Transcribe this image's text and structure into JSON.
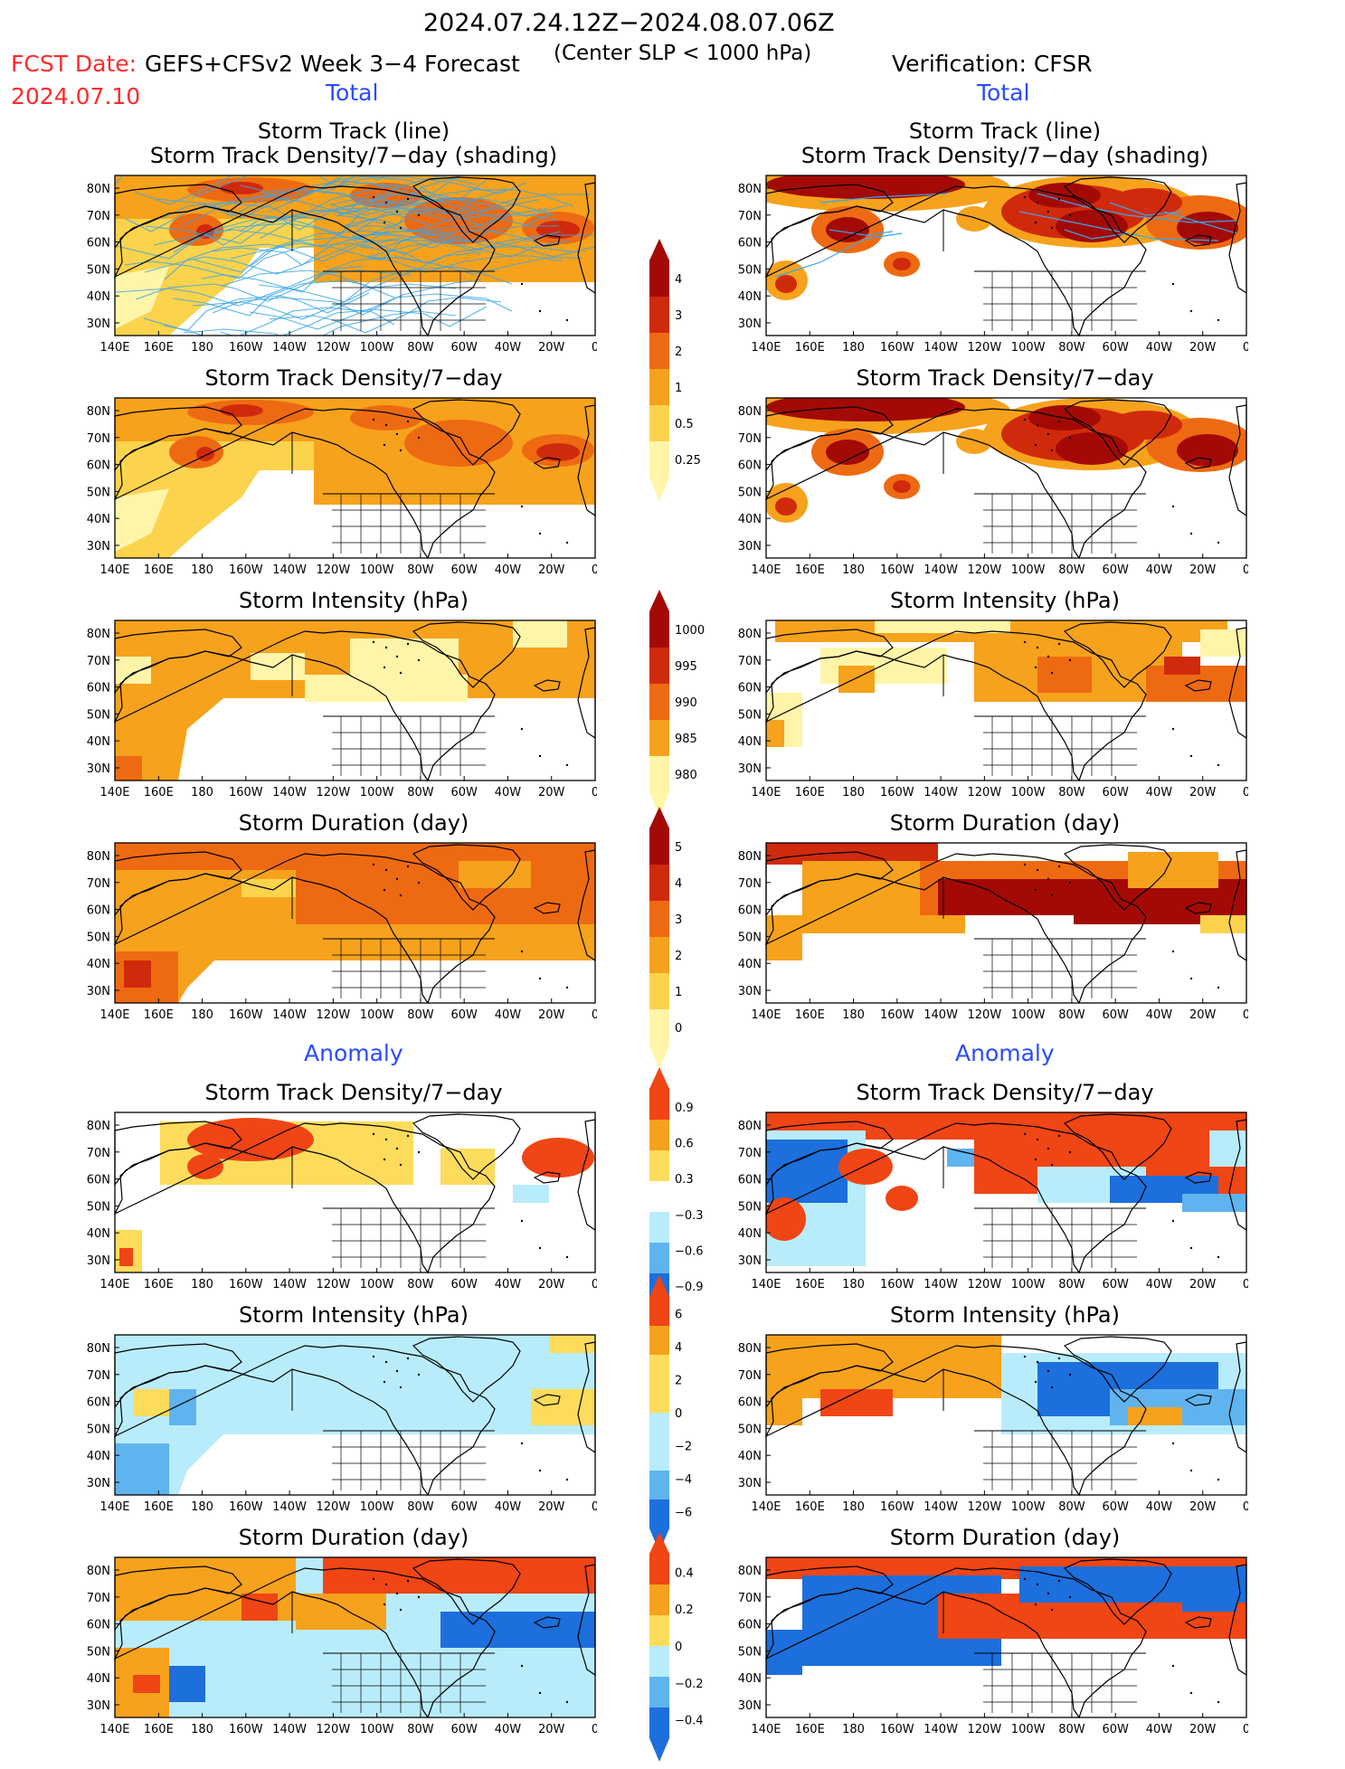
{
  "header": {
    "period": "2024.07.24.12Z−2024.08.07.06Z",
    "fcst_label": "FCST Date:",
    "fcst_date": "2024.07.10",
    "model": "GEFS+CFSv2 Week 3−4 Forecast",
    "criterion": "(Center SLP < 1000 hPa)",
    "verification": "Verification: CFSR"
  },
  "sections": {
    "total": "Total",
    "anomaly": "Anomaly"
  },
  "panel_titles": {
    "track_line": "Storm Track (line)",
    "track_shading": "Storm Track Density/7−day (shading)",
    "density": "Storm Track Density/7−day",
    "intensity": "Storm Intensity (hPa)",
    "duration": "Storm Duration (day)"
  },
  "axes": {
    "lat_labels": [
      "80N",
      "70N",
      "60N",
      "50N",
      "40N",
      "30N"
    ],
    "lon_labels": [
      "140E",
      "160E",
      "180",
      "160W",
      "140W",
      "120W",
      "100W",
      "80W",
      "60W",
      "40W",
      "20W",
      "0"
    ]
  },
  "colorbars": {
    "density_total": [
      "4",
      "3",
      "2",
      "1",
      "0.5",
      "0.25"
    ],
    "intensity_total": [
      "1000",
      "995",
      "990",
      "985",
      "980"
    ],
    "duration_total": [
      "5",
      "4",
      "3",
      "2",
      "1",
      "0"
    ],
    "density_anom": [
      "0.9",
      "0.6",
      "0.3",
      "−0.3",
      "−0.6",
      "−0.9"
    ],
    "intensity_anom": [
      "6",
      "4",
      "2",
      "0",
      "−2",
      "−4",
      "−6"
    ],
    "duration_anom": [
      "0.4",
      "0.2",
      "0",
      "−0.2",
      "−0.4"
    ]
  },
  "colors": {
    "seq_warm": [
      "#fff5a8",
      "#fcd34d",
      "#f6a21c",
      "#ee6a12",
      "#d02a0c",
      "#a30a06"
    ],
    "seq_intensity": [
      "#fff5a8",
      "#f6a21c",
      "#ee6a12",
      "#d02a0c",
      "#a30a06"
    ],
    "div_pos": [
      "#fddc5c",
      "#f6a21c",
      "#f04514"
    ],
    "div_neg": [
      "#b9ecfb",
      "#5fb4f0",
      "#1c6fdc"
    ],
    "track_line": "#3aa6e8"
  }
}
